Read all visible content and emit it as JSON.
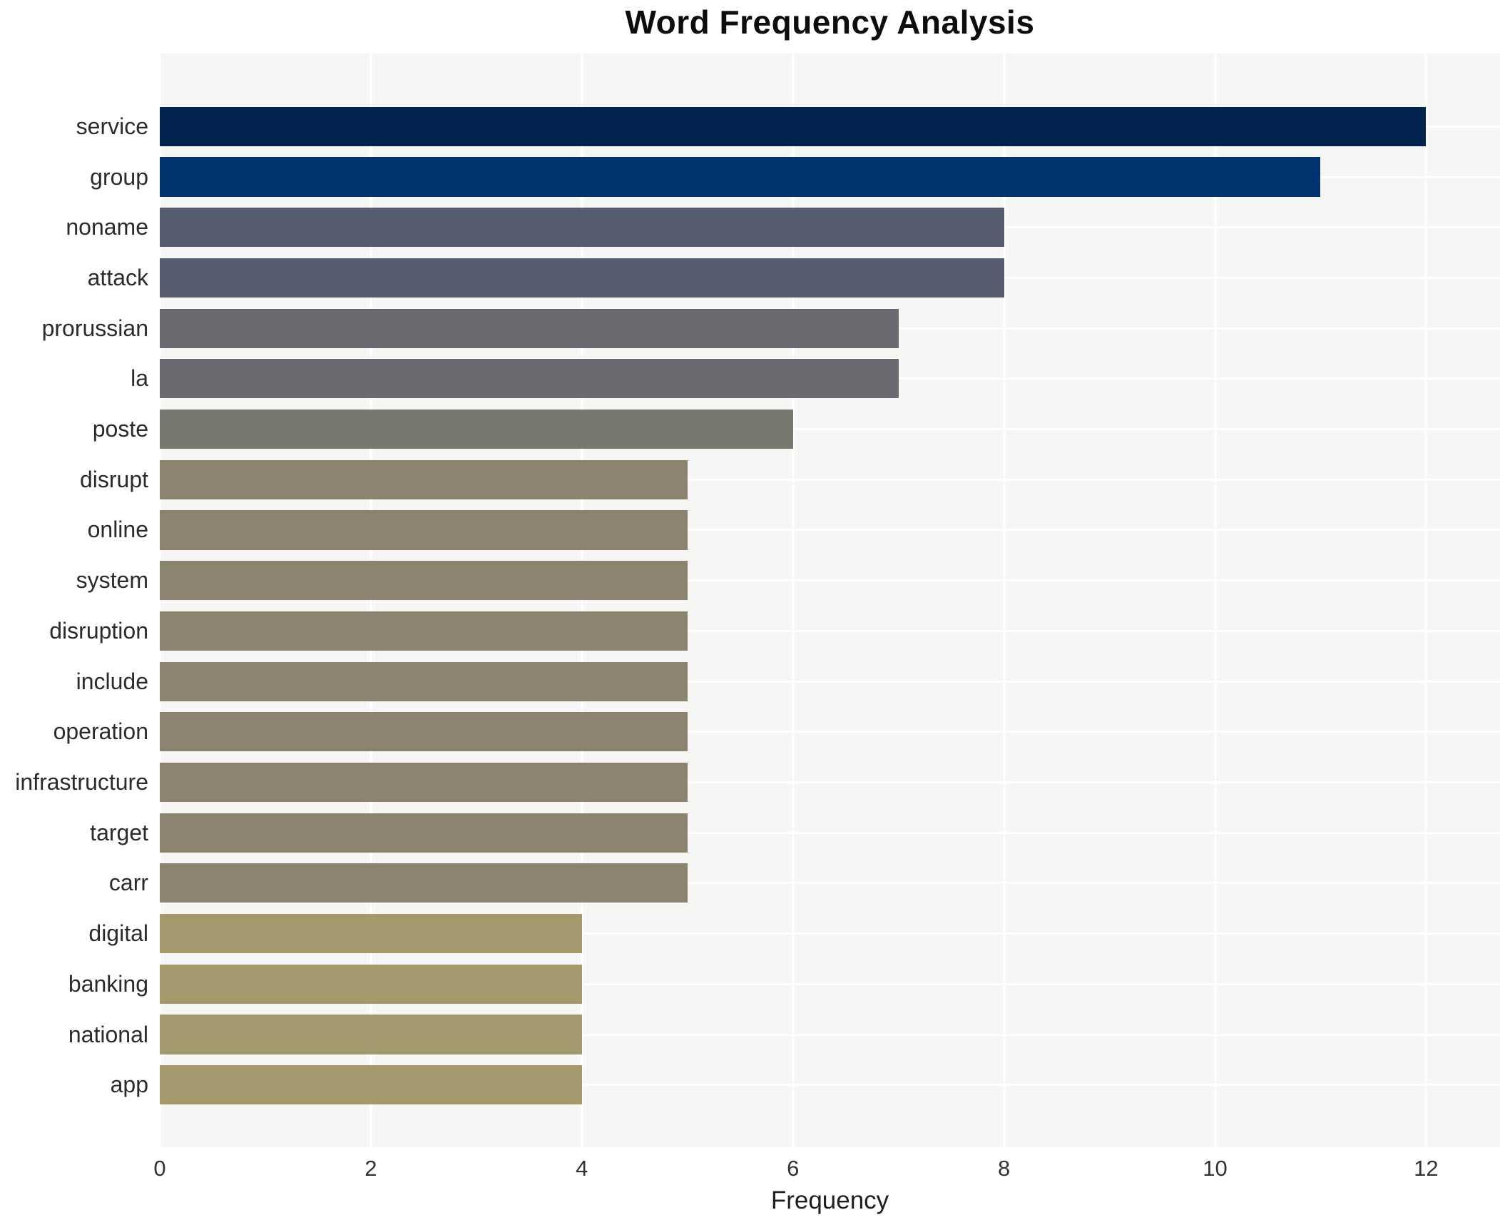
{
  "page": {
    "background_color": "#ffffff",
    "plot_background_color": "#f6f6f5",
    "grid_color": "#ffffff",
    "text_color": "#2b2b2b"
  },
  "chart_data": {
    "type": "bar",
    "orientation": "horizontal",
    "title": "Word Frequency Analysis",
    "xlabel": "Frequency",
    "ylabel": "",
    "legend": "none",
    "grid": "on",
    "categories": [
      "service",
      "group",
      "noname",
      "attack",
      "prorussian",
      "la",
      "poste",
      "disrupt",
      "online",
      "system",
      "disruption",
      "include",
      "operation",
      "infrastructure",
      "target",
      "carr",
      "digital",
      "banking",
      "national",
      "app"
    ],
    "values": [
      12,
      11,
      8,
      8,
      7,
      7,
      6,
      5,
      5,
      5,
      5,
      5,
      5,
      5,
      5,
      5,
      4,
      4,
      4,
      4
    ],
    "bar_colors": [
      "#01234e",
      "#003470",
      "#575d70",
      "#575d70",
      "#6a6a70",
      "#6a6a70",
      "#79786f",
      "#8b8370",
      "#8b8370",
      "#8b8370",
      "#8b8370",
      "#8b8370",
      "#8b8370",
      "#8b8370",
      "#8b8370",
      "#8b8370",
      "#a29a6d",
      "#a29a6d",
      "#a29a6d",
      "#a29a6d"
    ],
    "xticks": [
      0,
      2,
      4,
      6,
      8,
      10,
      12
    ],
    "xlim": [
      0,
      12.7
    ]
  }
}
